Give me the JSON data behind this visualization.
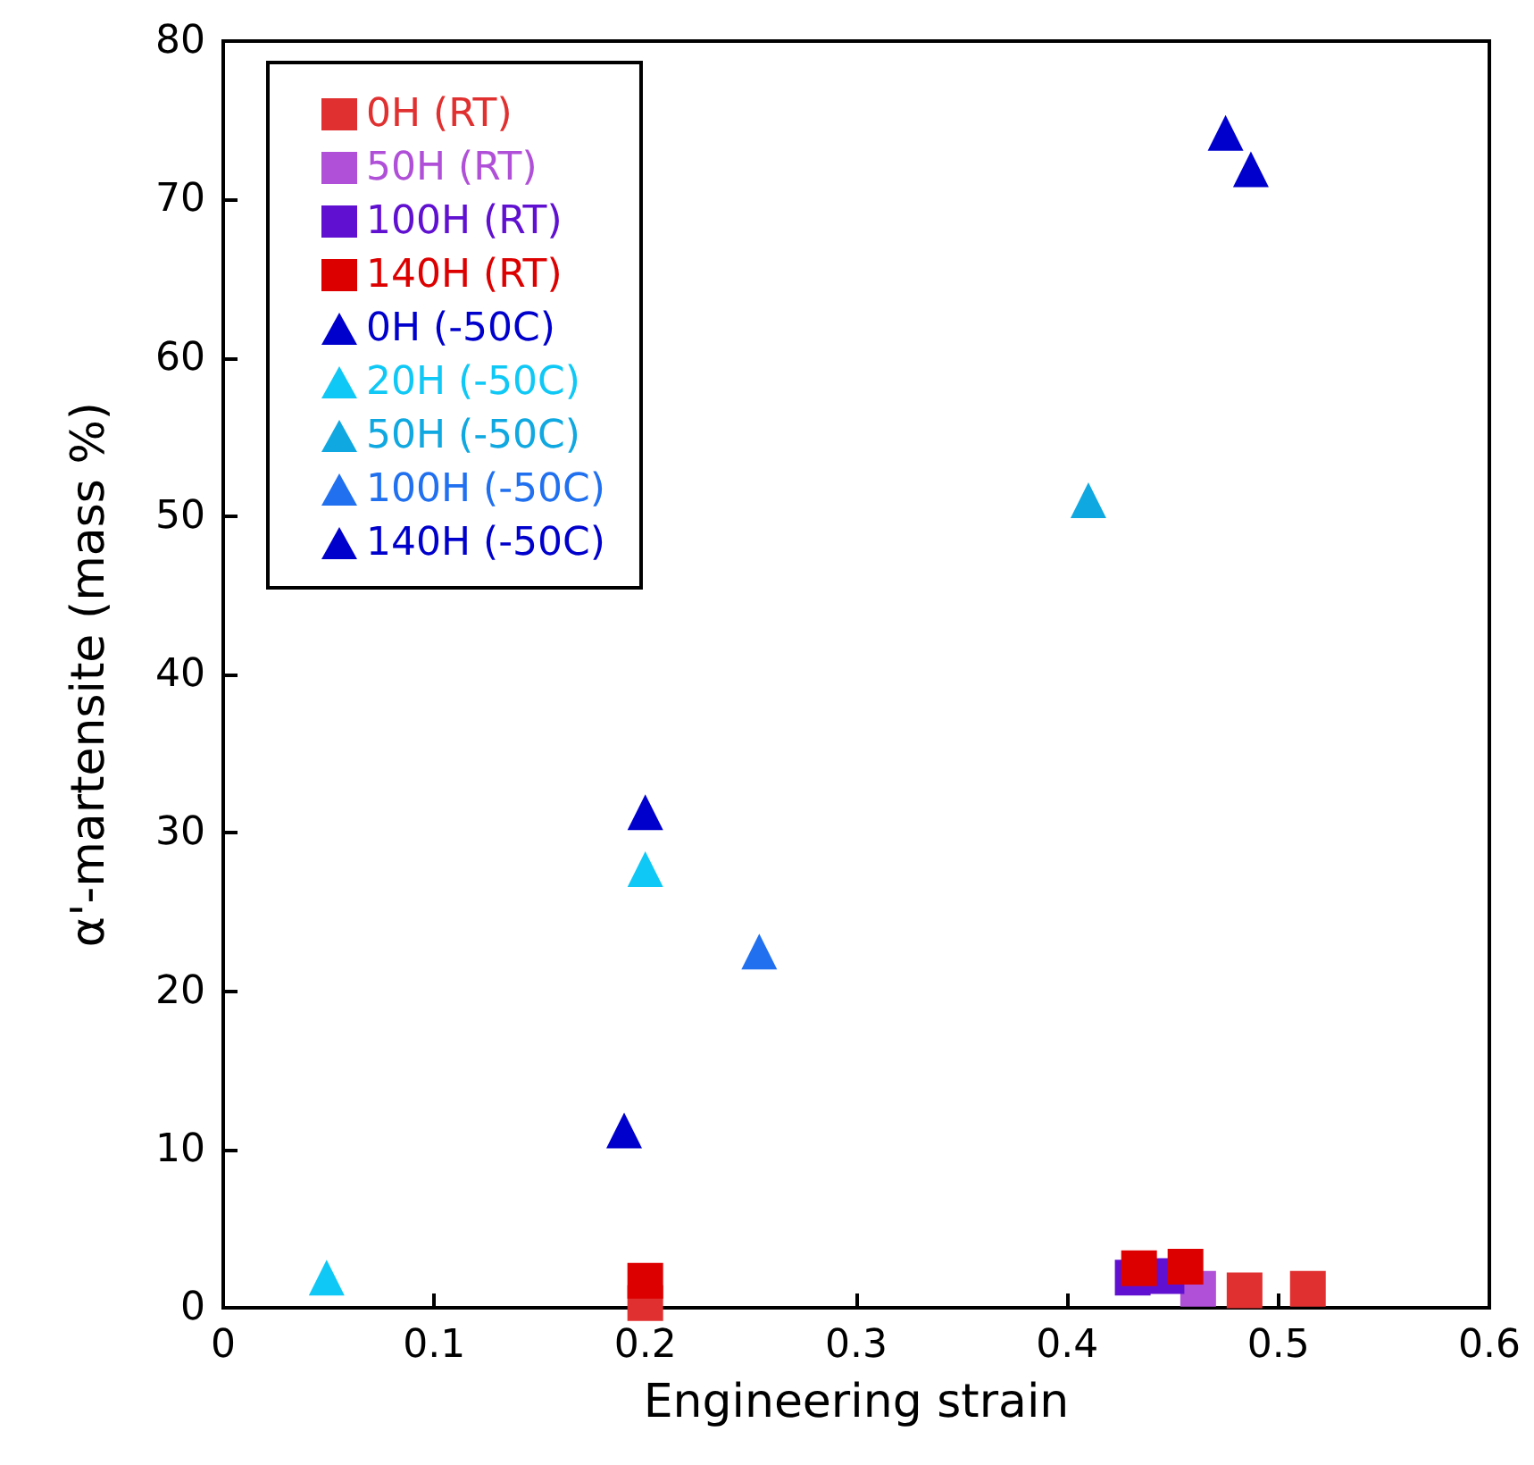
{
  "chart_data": {
    "type": "scatter",
    "xlabel": "Engineering strain",
    "ylabel": "α'-martensite (mass %)",
    "xlim": [
      0,
      0.6
    ],
    "xticks": [
      0,
      0.1,
      0.2,
      0.3,
      0.4,
      0.5,
      0.6
    ],
    "ylim": [
      0,
      80
    ],
    "yticks": [
      0,
      10,
      20,
      30,
      40,
      50,
      60,
      70,
      80
    ],
    "grid": false,
    "legend": "top left",
    "series": [
      {
        "name": "0H (RT)",
        "color": "#e03030",
        "marker": "square",
        "x": [
          0.2,
          0.484,
          0.514
        ],
        "values": [
          0.3,
          1.1,
          1.2
        ]
      },
      {
        "name": "50H (RT)",
        "color": "#b050d8",
        "marker": "square",
        "x": [
          0.462
        ],
        "values": [
          1.2
        ]
      },
      {
        "name": "100H (RT)",
        "color": "#6010d0",
        "marker": "square",
        "x": [
          0.431,
          0.447
        ],
        "values": [
          1.9,
          2.0
        ]
      },
      {
        "name": "140H (RT)",
        "color": "#dd0000",
        "marker": "square",
        "x": [
          0.2,
          0.434,
          0.456
        ],
        "values": [
          1.7,
          2.5,
          2.6
        ]
      },
      {
        "name": "0H (-50C)",
        "color": "#0000cc",
        "marker": "triangle",
        "x": [
          0.2,
          0.475,
          0.487
        ],
        "values": [
          31.3,
          74.2,
          71.9
        ]
      },
      {
        "name": "20H (-50C)",
        "color": "#10c8f5",
        "marker": "triangle",
        "x": [
          0.049,
          0.2
        ],
        "values": [
          1.9,
          27.7
        ]
      },
      {
        "name": "50H (-50C)",
        "color": "#10a8e0",
        "marker": "triangle",
        "x": [
          0.41
        ],
        "values": [
          51.0
        ]
      },
      {
        "name": "100H (-50C)",
        "color": "#2070f0",
        "marker": "triangle",
        "x": [
          0.254
        ],
        "values": [
          22.5
        ]
      },
      {
        "name": "140H (-50C)",
        "color": "#0000cc",
        "marker": "triangle",
        "x": [
          0.19
        ],
        "values": [
          11.2
        ]
      }
    ]
  }
}
